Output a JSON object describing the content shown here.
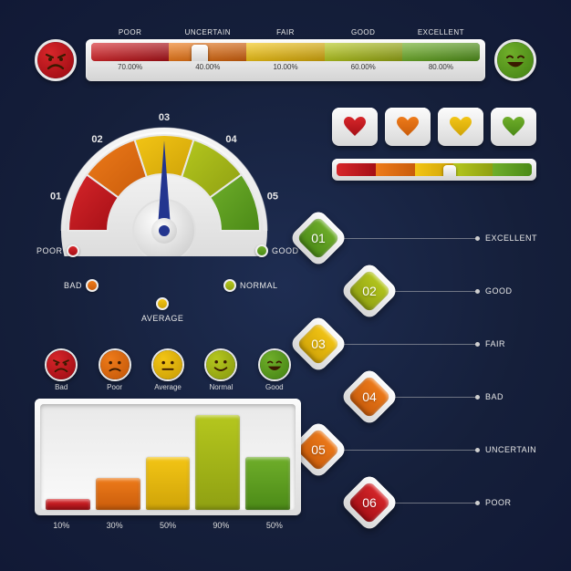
{
  "palette": {
    "red": "#d7262a",
    "orange": "#ee7b1a",
    "yellow": "#f3c515",
    "olive": "#b5c71e",
    "green": "#6fae2a",
    "red_d": "#a50f16",
    "orange_d": "#c95c0b",
    "yellow_d": "#cfa308",
    "olive_d": "#8fa012",
    "green_d": "#4b8a17"
  },
  "top_bar": {
    "labels": [
      "POOR",
      "UNCERTAIN",
      "FAIR",
      "GOOD",
      "EXCELLENT"
    ],
    "values": [
      "70.00%",
      "40.00%",
      "10.00%",
      "60.00%",
      "80.00%"
    ],
    "colors": [
      "red",
      "orange",
      "yellow",
      "olive",
      "green"
    ],
    "knob_pct": 28,
    "left_face": {
      "color": "red",
      "mood": "angry"
    },
    "right_face": {
      "color": "green",
      "mood": "happy"
    }
  },
  "gauge": {
    "ticks": [
      "01",
      "02",
      "03",
      "04",
      "05"
    ],
    "seg_colors": [
      "red",
      "orange",
      "yellow",
      "olive",
      "green"
    ],
    "needle_value": 3,
    "legend": [
      {
        "label": "POOR",
        "color": "red"
      },
      {
        "label": "BAD",
        "color": "orange"
      },
      {
        "label": "AVERAGE",
        "color": "yellow"
      },
      {
        "label": "NORMAL",
        "color": "olive"
      },
      {
        "label": "GOOD",
        "color": "green"
      }
    ]
  },
  "hearts": {
    "colors": [
      "red",
      "orange",
      "yellow",
      "green"
    ]
  },
  "slider": {
    "colors": [
      "red",
      "orange",
      "yellow",
      "olive",
      "green"
    ],
    "knob_pct": 58
  },
  "steps": [
    {
      "num": "01",
      "label": "EXCELLENT",
      "color": "green"
    },
    {
      "num": "02",
      "label": "GOOD",
      "color": "olive"
    },
    {
      "num": "03",
      "label": "FAIR",
      "color": "yellow"
    },
    {
      "num": "04",
      "label": "BAD",
      "color": "orange"
    },
    {
      "num": "05",
      "label": "UNCERTAIN",
      "color": "orange"
    },
    {
      "num": "06",
      "label": "POOR",
      "color": "red"
    }
  ],
  "bar_chart": {
    "items": [
      {
        "label": "Bad",
        "value": 10,
        "color": "red",
        "mood": "angry"
      },
      {
        "label": "Poor",
        "value": 30,
        "color": "orange",
        "mood": "sad"
      },
      {
        "label": "Average",
        "value": 50,
        "color": "yellow",
        "mood": "flat"
      },
      {
        "label": "Normal",
        "value": 90,
        "color": "olive",
        "mood": "smile"
      },
      {
        "label": "Good",
        "value": 50,
        "color": "green",
        "mood": "happy"
      }
    ],
    "value_suffix": "%",
    "ymax": 100
  }
}
